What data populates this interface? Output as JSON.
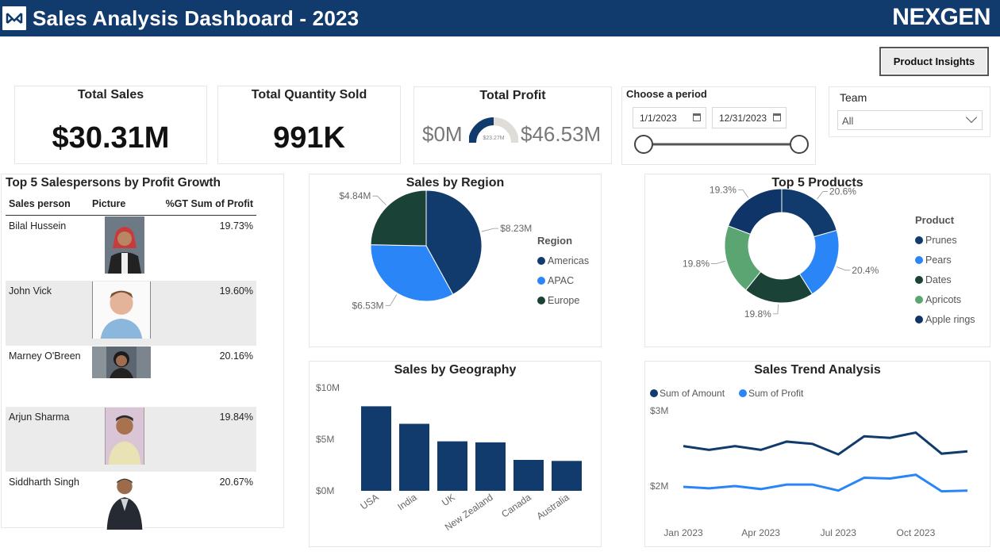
{
  "header": {
    "title": "Sales Analysis Dashboard - 2023",
    "brand": "NEXGEN"
  },
  "buttons": {
    "product_insights": "Product Insights"
  },
  "kpis": {
    "total_sales": {
      "title": "Total Sales",
      "value": "$30.31M"
    },
    "total_quantity": {
      "title": "Total Quantity Sold",
      "value": "991K"
    },
    "total_profit": {
      "title": "Total Profit",
      "min": "$0M",
      "max": "$46.53M",
      "gauge_value": "$23.27M",
      "gauge_fraction": 0.5
    }
  },
  "filters": {
    "period": {
      "title": "Choose a period",
      "start": "1/1/2023",
      "end": "12/31/2023"
    },
    "team": {
      "title": "Team",
      "selected": "All"
    }
  },
  "salespersons": {
    "title": "Top 5 Salespersons by Profit Growth",
    "columns": [
      "Sales person",
      "Picture",
      "%GT Sum of Profit"
    ],
    "rows": [
      {
        "name": "Bilal Hussein",
        "value": "19.73%"
      },
      {
        "name": "John Vick",
        "value": "19.60%"
      },
      {
        "name": "Marney O'Breen",
        "value": "20.16%"
      },
      {
        "name": "Arjun Sharma",
        "value": "19.84%"
      },
      {
        "name": "Siddharth Singh",
        "value": "20.67%"
      }
    ]
  },
  "colors": {
    "navy": "#123b6d",
    "blue": "#2a86f7",
    "dark_green": "#1b4237",
    "green": "#5aa572",
    "apple": "#0f3568"
  },
  "chart_data": [
    {
      "type": "pie",
      "title": "Sales by Region",
      "legend_title": "Region",
      "categories": [
        "Americas",
        "APAC",
        "Europe"
      ],
      "values": [
        8.23,
        6.53,
        4.84
      ],
      "labels": [
        "$8.23M",
        "$6.53M",
        "$4.84M"
      ],
      "colors": [
        "#123b6d",
        "#2a86f7",
        "#1b4237"
      ],
      "legend_position": "right"
    },
    {
      "type": "pie",
      "title": "Top 5 Products",
      "legend_title": "Product",
      "categories": [
        "Prunes",
        "Pears",
        "Dates",
        "Apricots",
        "Apple rings"
      ],
      "values": [
        20.6,
        20.4,
        19.8,
        19.8,
        19.3
      ],
      "labels": [
        "20.6%",
        "20.4%",
        "19.8%",
        "19.8%",
        "19.3%"
      ],
      "colors": [
        "#123b6d",
        "#2a86f7",
        "#1b4237",
        "#5aa572",
        "#0f3568"
      ],
      "donut": true,
      "legend_position": "right"
    },
    {
      "type": "bar",
      "title": "Sales by Geography",
      "categories": [
        "USA",
        "India",
        "UK",
        "New Zealand",
        "Canada",
        "Australia"
      ],
      "values": [
        8.2,
        6.5,
        4.8,
        4.7,
        3.0,
        2.9
      ],
      "y_ticks": [
        "$0M",
        "$5M",
        "$10M"
      ],
      "ylim": [
        0,
        10
      ],
      "color": "#123b6d"
    },
    {
      "type": "line",
      "title": "Sales Trend Analysis",
      "x_ticks": [
        "Jan 2023",
        "Apr 2023",
        "Jul 2023",
        "Oct 2023"
      ],
      "y_ticks": [
        "$2M",
        "$3M"
      ],
      "ylim": [
        1.8,
        3.0
      ],
      "series": [
        {
          "name": "Sum of Amount",
          "color": "#123b6d",
          "values": [
            2.53,
            2.48,
            2.53,
            2.48,
            2.59,
            2.56,
            2.42,
            2.66,
            2.64,
            2.71,
            2.43,
            2.46
          ]
        },
        {
          "name": "Sum of Profit",
          "color": "#2a86f7",
          "values": [
            1.99,
            1.97,
            2.0,
            1.96,
            2.02,
            2.02,
            1.94,
            2.11,
            2.1,
            2.15,
            1.93,
            1.94
          ]
        }
      ],
      "legend_position": "top-left"
    }
  ]
}
